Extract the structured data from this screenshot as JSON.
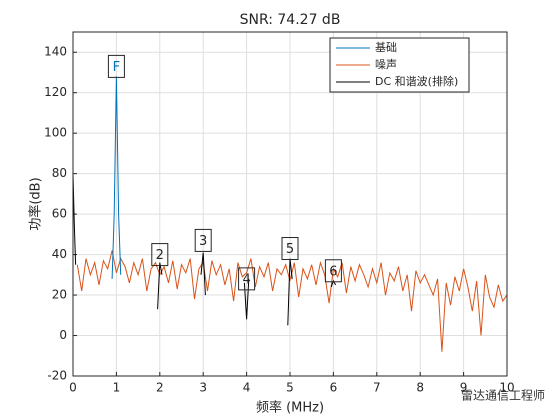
{
  "chart_data": {
    "type": "line",
    "title": "SNR:  74.27 dB",
    "xlabel": "频率 (MHz)",
    "ylabel": "功率(dB)",
    "xlim": [
      0,
      10
    ],
    "xticks": [
      0,
      1,
      2,
      3,
      4,
      5,
      6,
      7,
      8,
      9,
      10
    ],
    "ylim": [
      -20,
      150
    ],
    "yticks": [
      -20,
      0,
      20,
      40,
      60,
      80,
      100,
      120,
      140
    ],
    "grid": true,
    "legend": "northeast",
    "series": [
      {
        "name": "基础",
        "color": "#0072bd",
        "x": [
          0.9,
          0.95,
          1.0,
          1.05,
          1.1
        ],
        "values": [
          28,
          60,
          128,
          60,
          30
        ]
      },
      {
        "name": "噪声",
        "color": "#d95319",
        "x": [
          0.1,
          0.2,
          0.3,
          0.4,
          0.5,
          0.6,
          0.7,
          0.8,
          0.9,
          1.0,
          1.1,
          1.2,
          1.3,
          1.4,
          1.5,
          1.6,
          1.7,
          1.8,
          1.9,
          2.0,
          2.1,
          2.2,
          2.3,
          2.4,
          2.5,
          2.6,
          2.7,
          2.8,
          2.9,
          3.0,
          3.1,
          3.2,
          3.3,
          3.4,
          3.5,
          3.6,
          3.7,
          3.8,
          3.9,
          4.0,
          4.1,
          4.2,
          4.3,
          4.4,
          4.5,
          4.6,
          4.7,
          4.8,
          4.9,
          5.0,
          5.1,
          5.2,
          5.3,
          5.4,
          5.5,
          5.6,
          5.7,
          5.8,
          5.9,
          6.0,
          6.1,
          6.2,
          6.3,
          6.4,
          6.5,
          6.6,
          6.7,
          6.8,
          6.9,
          7.0,
          7.1,
          7.2,
          7.3,
          7.4,
          7.5,
          7.6,
          7.7,
          7.8,
          7.9,
          8.0,
          8.1,
          8.2,
          8.3,
          8.4,
          8.5,
          8.6,
          8.7,
          8.8,
          8.9,
          9.0,
          9.1,
          9.2,
          9.3,
          9.4,
          9.5,
          9.6,
          9.7,
          9.8,
          9.9,
          10
        ],
        "values": [
          35,
          22,
          38,
          30,
          36,
          25,
          37,
          33,
          42,
          31,
          38,
          34,
          26,
          36,
          30,
          38,
          22,
          33,
          36,
          30,
          34,
          26,
          37,
          23,
          35,
          31,
          38,
          18,
          33,
          36,
          22,
          37,
          30,
          35,
          25,
          33,
          17,
          36,
          29,
          31,
          38,
          24,
          34,
          29,
          36,
          22,
          33,
          30,
          35,
          27,
          36,
          19,
          33,
          28,
          35,
          25,
          36,
          30,
          16,
          33,
          29,
          36,
          21,
          34,
          27,
          35,
          30,
          24,
          33,
          26,
          36,
          20,
          31,
          27,
          34,
          22,
          30,
          12,
          32,
          26,
          30,
          25,
          20,
          28,
          -8,
          26,
          15,
          29,
          22,
          33,
          24,
          12,
          27,
          0,
          30,
          19,
          14,
          25,
          17,
          20
        ]
      },
      {
        "name": "DC 和谐波(排除)",
        "color": "#000000",
        "x": [
          0,
          0.03,
          0.06,
          1,
          1.95,
          2.0,
          2.05,
          2.5,
          2.95,
          3.0,
          3.05,
          3.5,
          3.95,
          4.0,
          4.05,
          4.5,
          4.95,
          5.0,
          5.05,
          5.5,
          5.95,
          6.0,
          6.05
        ],
        "values": [
          80,
          55,
          35,
          null,
          13,
          36,
          30,
          null,
          30,
          41,
          20,
          null,
          26,
          8,
          28,
          null,
          5,
          38,
          28,
          null,
          24,
          27,
          25
        ]
      }
    ],
    "annotations": [
      {
        "text": "F",
        "x": 1,
        "y": 133
      },
      {
        "text": "2",
        "x": 2,
        "y": 40
      },
      {
        "text": "3",
        "x": 3,
        "y": 47
      },
      {
        "text": "4",
        "x": 4,
        "y": 28
      },
      {
        "text": "5",
        "x": 5,
        "y": 43
      },
      {
        "text": "6",
        "x": 6,
        "y": 32
      }
    ]
  },
  "watermark": "雷达通信工程师"
}
